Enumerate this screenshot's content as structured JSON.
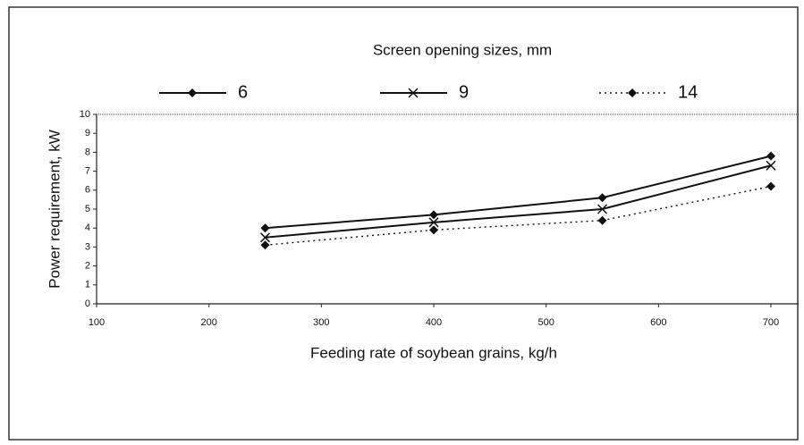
{
  "chart_data": {
    "type": "line",
    "legend_title": "Screen opening sizes, mm",
    "x_label": "Feeding rate of soybean grains, kg/h",
    "y_label": "Power requirement, kW",
    "x": [
      250,
      400,
      550,
      700
    ],
    "series": [
      {
        "name": "6",
        "color": "#111111",
        "marker": "diamond",
        "dashed": false,
        "values": [
          4.0,
          4.7,
          5.6,
          7.8
        ]
      },
      {
        "name": "9",
        "color": "#111111",
        "marker": "x",
        "dashed": false,
        "values": [
          3.5,
          4.3,
          5.0,
          7.3
        ]
      },
      {
        "name": "14",
        "color": "#111111",
        "marker": "diamond",
        "dashed": true,
        "values": [
          3.1,
          3.9,
          4.4,
          6.2
        ]
      }
    ],
    "xlim": [
      100,
      700
    ],
    "xticks": [
      100,
      200,
      300,
      400,
      500,
      600,
      700
    ],
    "ylim": [
      0,
      10
    ],
    "yticks": [
      0,
      1,
      2,
      3,
      4,
      5,
      6,
      7,
      8,
      9,
      10
    ]
  }
}
